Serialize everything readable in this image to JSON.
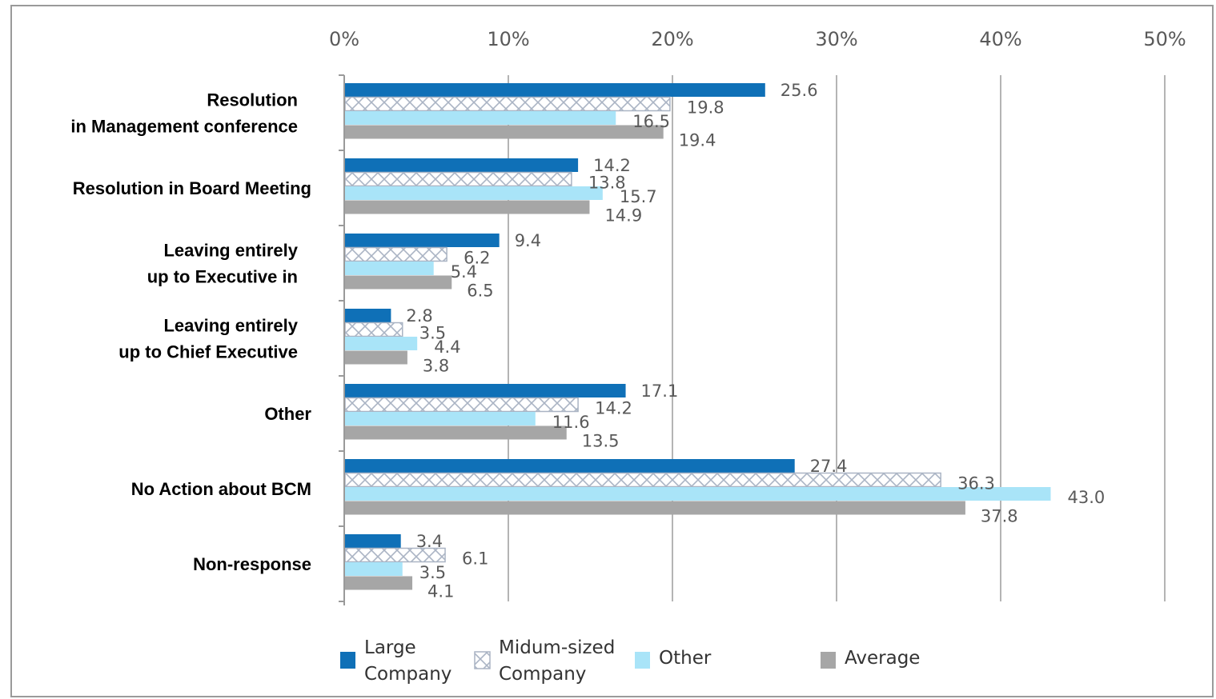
{
  "chart_data": {
    "type": "bar",
    "orientation": "horizontal",
    "x_tick_labels": [
      "0%",
      "10%",
      "20%",
      "30%",
      "40%",
      "50%"
    ],
    "xlim": [
      0,
      50
    ],
    "grid": true,
    "legend_position": "bottom",
    "categories": [
      [
        "Resolution",
        "in Management conference"
      ],
      [
        "Resolution in Board Meeting"
      ],
      [
        "Leaving entirely",
        "up to Executive in"
      ],
      [
        "Leaving entirely",
        "up to Chief Executive"
      ],
      [
        "Other"
      ],
      [
        "No Action about BCM"
      ],
      [
        "Non-response"
      ]
    ],
    "series": [
      {
        "name": [
          "Large",
          "Company"
        ],
        "color": "#0f70b7",
        "pattern": "solid",
        "values": [
          25.6,
          14.2,
          9.4,
          2.8,
          17.1,
          27.4,
          3.4
        ]
      },
      {
        "name": [
          "Midum-sized",
          "Company"
        ],
        "color": "#aab4c4",
        "pattern": "crosshatch",
        "values": [
          19.8,
          13.8,
          6.2,
          3.5,
          14.2,
          36.3,
          6.1
        ]
      },
      {
        "name": [
          "Other"
        ],
        "color": "#a9e4f8",
        "pattern": "solid",
        "values": [
          16.5,
          15.7,
          5.4,
          4.4,
          11.6,
          43.0,
          3.5
        ]
      },
      {
        "name": [
          "Average"
        ],
        "color": "#a6a6a6",
        "pattern": "solid",
        "values": [
          19.4,
          14.9,
          6.5,
          3.8,
          13.5,
          37.8,
          4.1
        ]
      }
    ],
    "value_labels": [
      [
        "25.6",
        "19.8",
        "16.5",
        "19.4"
      ],
      [
        "14.2",
        "13.8",
        "15.7",
        "14.9"
      ],
      [
        "9.4",
        "6.2",
        "5.4",
        "6.5"
      ],
      [
        "2.8",
        "3.5",
        "4.4",
        "3.8"
      ],
      [
        "17.1",
        "14.2",
        "11.6",
        "13.5"
      ],
      [
        "27.4",
        "36.3",
        "43.0",
        "37.8"
      ],
      [
        "3.4",
        "6.1",
        "3.5",
        "4.1"
      ]
    ]
  }
}
